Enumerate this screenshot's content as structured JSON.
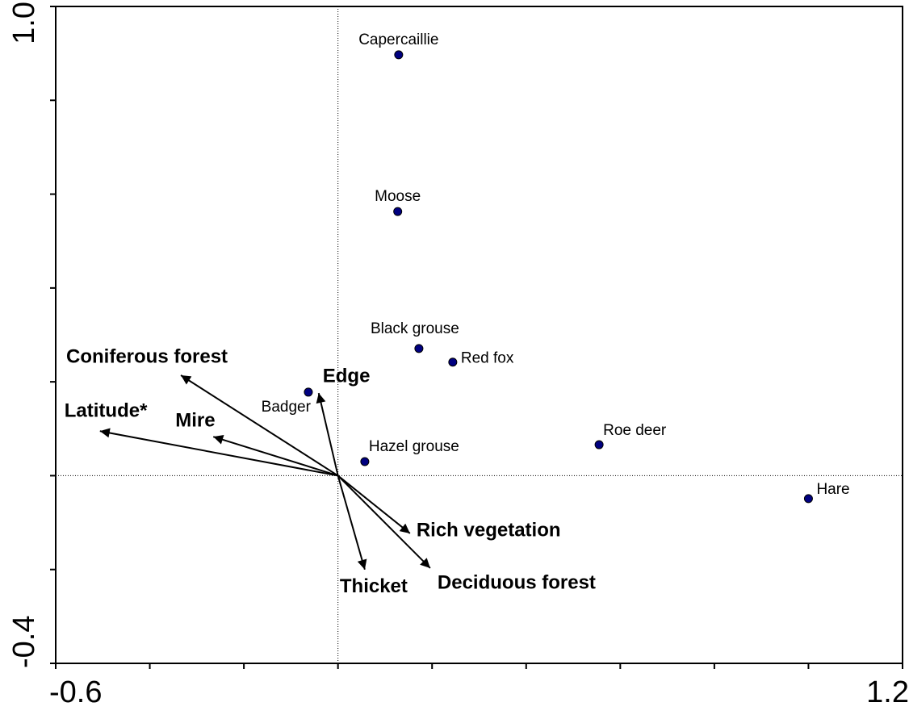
{
  "chart_data": {
    "type": "biplot",
    "xlim": [
      -0.6,
      1.2
    ],
    "ylim": [
      -0.4,
      1.0
    ],
    "xticks": [
      -0.6,
      {
        "value": -0.4,
        "label": null
      },
      {
        "value": -0.2,
        "label": null
      },
      {
        "value": 0,
        "label": null
      },
      {
        "value": 0.2,
        "label": null
      },
      {
        "value": 0.4,
        "label": null
      },
      {
        "value": 0.6,
        "label": null
      },
      {
        "value": 0.8,
        "label": null
      },
      {
        "value": 1.0,
        "label": null
      },
      1.2
    ],
    "yticks": [
      -0.4,
      {
        "value": -0.2,
        "label": null
      },
      {
        "value": 0,
        "label": null
      },
      {
        "value": 0.2,
        "label": null
      },
      {
        "value": 0.4,
        "label": null
      },
      {
        "value": 0.6,
        "label": null
      },
      {
        "value": 0.8,
        "label": null
      },
      {
        "value": 1,
        "label": "1.0"
      }
    ],
    "points": {
      "color": "#000080",
      "labels": [
        "Capercaillie",
        "Moose",
        "Black grouse",
        "Red fox",
        "Badger",
        "Hazel grouse",
        "Roe deer",
        "Hare"
      ],
      "x": [
        0.129,
        0.127,
        0.172,
        0.244,
        -0.063,
        0.057,
        0.555,
        1.0
      ],
      "y": [
        0.897,
        0.563,
        0.271,
        0.242,
        0.178,
        0.03,
        0.066,
        -0.049
      ]
    },
    "vectors": {
      "color": "#000000",
      "labels": [
        "Coniferous forest",
        "Latitude*",
        "Mire",
        "Edge",
        "Rich vegetation",
        "Deciduous forest",
        "Thicket"
      ],
      "x": [
        -0.334,
        -0.506,
        -0.265,
        -0.041,
        0.153,
        0.196,
        0.057
      ],
      "y": [
        0.214,
        0.095,
        0.083,
        0.176,
        -0.123,
        -0.197,
        -0.2
      ]
    }
  }
}
